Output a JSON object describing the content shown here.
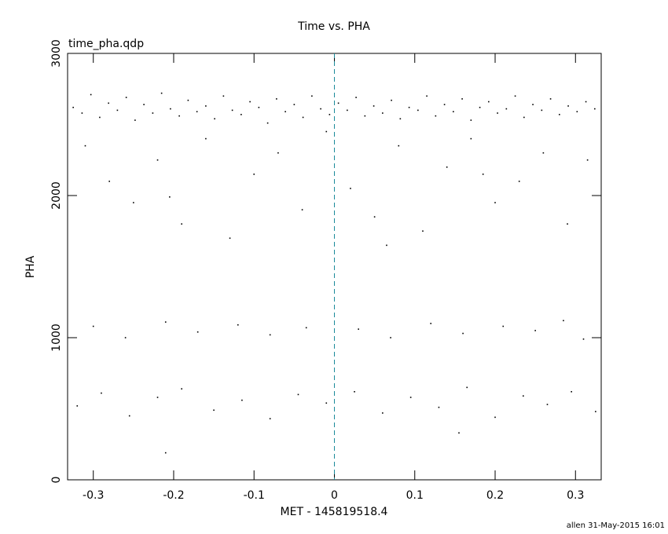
{
  "chart_data": {
    "type": "scatter",
    "title": "Time vs. PHA",
    "subtitle": "time_pha.qdp",
    "xlabel": "MET - 145819518.4",
    "ylabel": "PHA",
    "footer": "allen 31-May-2015 16:01",
    "color": "#000000",
    "x": [
      -0.325,
      -0.314,
      -0.303,
      -0.292,
      -0.281,
      -0.27,
      -0.259,
      -0.248,
      -0.237,
      -0.226,
      -0.215,
      -0.204,
      -0.193,
      -0.182,
      -0.171,
      -0.16,
      -0.149,
      -0.138,
      -0.127,
      -0.116,
      -0.105,
      -0.094,
      -0.083,
      -0.072,
      -0.061,
      -0.05,
      -0.039,
      -0.028,
      -0.017,
      -0.006,
      0.005,
      0.016,
      0.027,
      0.038,
      0.049,
      0.06,
      0.071,
      0.082,
      0.093,
      0.104,
      0.115,
      0.126,
      0.137,
      0.148,
      0.159,
      0.17,
      0.181,
      0.192,
      0.203,
      0.214,
      0.225,
      0.236,
      0.247,
      0.258,
      0.269,
      0.28,
      0.291,
      0.302,
      0.313,
      0.324,
      -0.31,
      -0.28,
      -0.25,
      -0.22,
      -0.19,
      -0.16,
      -0.13,
      -0.1,
      -0.07,
      -0.04,
      -0.01,
      0.02,
      0.05,
      0.08,
      0.11,
      0.14,
      0.17,
      0.2,
      0.23,
      0.26,
      0.29,
      0.315,
      -0.205,
      0.065,
      0.185,
      -0.3,
      -0.26,
      -0.21,
      -0.17,
      -0.12,
      -0.08,
      -0.035,
      0.03,
      0.07,
      0.12,
      0.16,
      0.21,
      0.25,
      0.285,
      0.31,
      -0.32,
      -0.29,
      -0.255,
      -0.22,
      -0.19,
      -0.15,
      -0.115,
      -0.08,
      -0.045,
      -0.01,
      0.025,
      0.06,
      0.095,
      0.13,
      0.165,
      0.2,
      0.235,
      0.265,
      0.295,
      0.325,
      -0.21,
      0.155
    ],
    "y": [
      2620,
      2580,
      2710,
      2550,
      2650,
      2600,
      2690,
      2530,
      2640,
      2580,
      2720,
      2610,
      2560,
      2670,
      2590,
      2630,
      2540,
      2700,
      2600,
      2570,
      2660,
      2620,
      2510,
      2680,
      2590,
      2640,
      2550,
      2700,
      2610,
      2570,
      2650,
      2600,
      2690,
      2560,
      2630,
      2580,
      2670,
      2540,
      2620,
      2600,
      2700,
      2560,
      2640,
      2590,
      2680,
      2530,
      2620,
      2660,
      2580,
      2610,
      2700,
      2550,
      2640,
      2600,
      2680,
      2570,
      2630,
      2590,
      2660,
      2610,
      2350,
      2100,
      1950,
      2250,
      1800,
      2400,
      1700,
      2150,
      2300,
      1900,
      2450,
      2050,
      1850,
      2350,
      1750,
      2200,
      2400,
      1950,
      2100,
      2300,
      1800,
      2250,
      1990,
      1650,
      2150,
      1080,
      1000,
      1110,
      1040,
      1090,
      1020,
      1070,
      1060,
      1000,
      1100,
      1030,
      1080,
      1050,
      1120,
      990,
      520,
      610,
      450,
      580,
      640,
      490,
      560,
      430,
      600,
      540,
      620,
      470,
      580,
      510,
      650,
      440,
      590,
      530,
      620,
      480,
      190,
      330
    ],
    "xlim": [
      -0.332,
      0.332
    ],
    "ylim": [
      0,
      3000
    ],
    "xticks": [
      -0.3,
      -0.2,
      -0.1,
      0,
      0.1,
      0.2,
      0.3
    ],
    "yticks": [
      0,
      1000,
      2000,
      3000
    ],
    "reference_line": {
      "x": 0,
      "color": "#1a8a9a"
    }
  }
}
